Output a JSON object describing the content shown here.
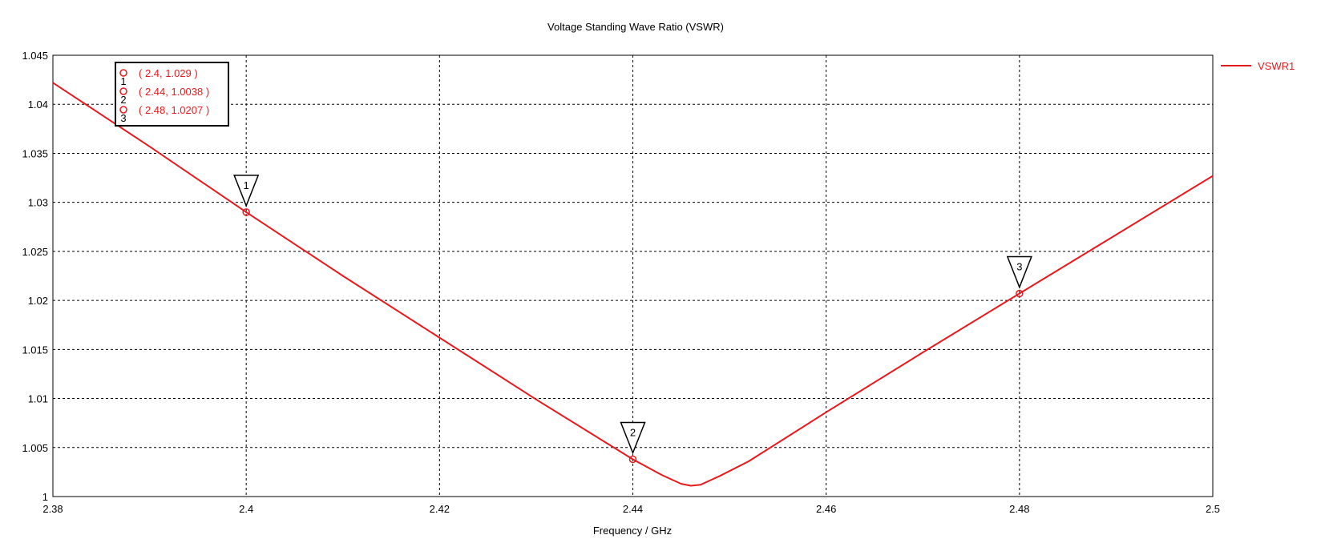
{
  "chart_data": {
    "type": "line",
    "title": "Voltage Standing Wave Ratio (VSWR)",
    "xlabel": "Frequency / GHz",
    "ylabel": "",
    "xlim": [
      2.38,
      2.5
    ],
    "ylim": [
      1,
      1.045
    ],
    "x_ticks": [
      "2.38",
      "2.4",
      "2.42",
      "2.44",
      "2.46",
      "2.48",
      "2.5"
    ],
    "y_ticks": [
      "1",
      "1.005",
      "1.01",
      "1.015",
      "1.02",
      "1.025",
      "1.03",
      "1.035",
      "1.04",
      "1.045"
    ],
    "grid": true,
    "legend_position": "top-right, outside plot",
    "series": [
      {
        "name": "VSWR1",
        "color": "#e8191c",
        "x": [
          2.38,
          2.39,
          2.4,
          2.41,
          2.42,
          2.43,
          2.44,
          2.443,
          2.445,
          2.446,
          2.447,
          2.449,
          2.452,
          2.46,
          2.47,
          2.48,
          2.49,
          2.5
        ],
        "y": [
          1.0422,
          1.0357,
          1.029,
          1.0225,
          1.0162,
          1.0099,
          1.0038,
          1.0022,
          1.0013,
          1.0011,
          1.0012,
          1.0021,
          1.0036,
          1.0086,
          1.0147,
          1.0207,
          1.0267,
          1.0327
        ]
      }
    ],
    "markers": [
      {
        "id": "1",
        "x": 2.4,
        "y": 1.029,
        "label": "( 2.4, 1.029 )"
      },
      {
        "id": "2",
        "x": 2.44,
        "y": 1.0038,
        "label": "( 2.44, 1.0038 )"
      },
      {
        "id": "3",
        "x": 2.48,
        "y": 1.0207,
        "label": "( 2.48, 1.0207 )"
      }
    ]
  }
}
